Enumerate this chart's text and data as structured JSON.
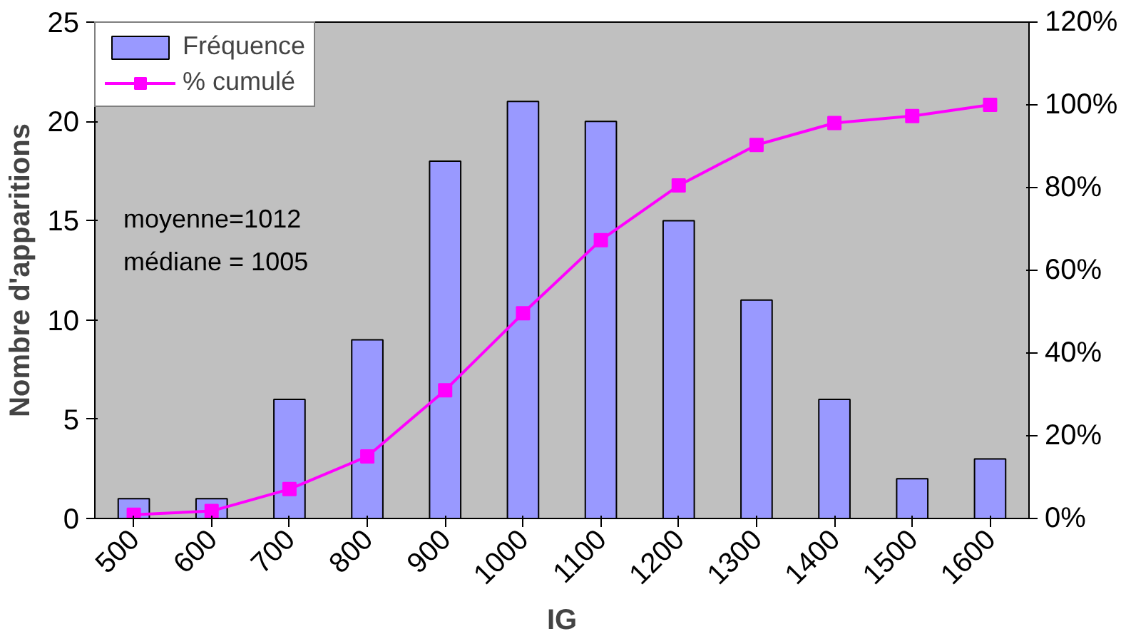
{
  "chart_data": {
    "type": "bar",
    "xlabel": "IG",
    "ylabel": "Nombre d'apparitions",
    "categories": [
      "500",
      "600",
      "700",
      "800",
      "900",
      "1000",
      "1100",
      "1200",
      "1300",
      "1400",
      "1500",
      "1600"
    ],
    "series": [
      {
        "name": "Fréquence",
        "color": "#9999ff",
        "values": [
          1,
          1,
          6,
          9,
          18,
          21,
          20,
          15,
          11,
          6,
          2,
          3
        ]
      },
      {
        "name": "% cumulé",
        "type": "line",
        "axis": "y2",
        "color": "#ff00ff",
        "marker": "square",
        "values": [
          0.9,
          1.8,
          7.1,
          15,
          31,
          49.6,
          67.3,
          80.5,
          90.3,
          95.6,
          97.3,
          100
        ]
      }
    ],
    "ylim": [
      0,
      25
    ],
    "yticks": [
      0,
      5,
      10,
      15,
      20,
      25
    ],
    "y2lim": [
      0,
      120
    ],
    "y2ticks": [
      {
        "value": 0,
        "label": "0%"
      },
      {
        "value": 20,
        "label": "20%"
      },
      {
        "value": 40,
        "label": "40%"
      },
      {
        "value": 60,
        "label": "60%"
      },
      {
        "value": 80,
        "label": "80%"
      },
      {
        "value": 100,
        "label": "100%"
      },
      {
        "value": 120,
        "label": "120%"
      }
    ],
    "legend": "top left",
    "grid": false,
    "annotations": [
      "moyenne=1012",
      "médiane = 1005"
    ]
  }
}
